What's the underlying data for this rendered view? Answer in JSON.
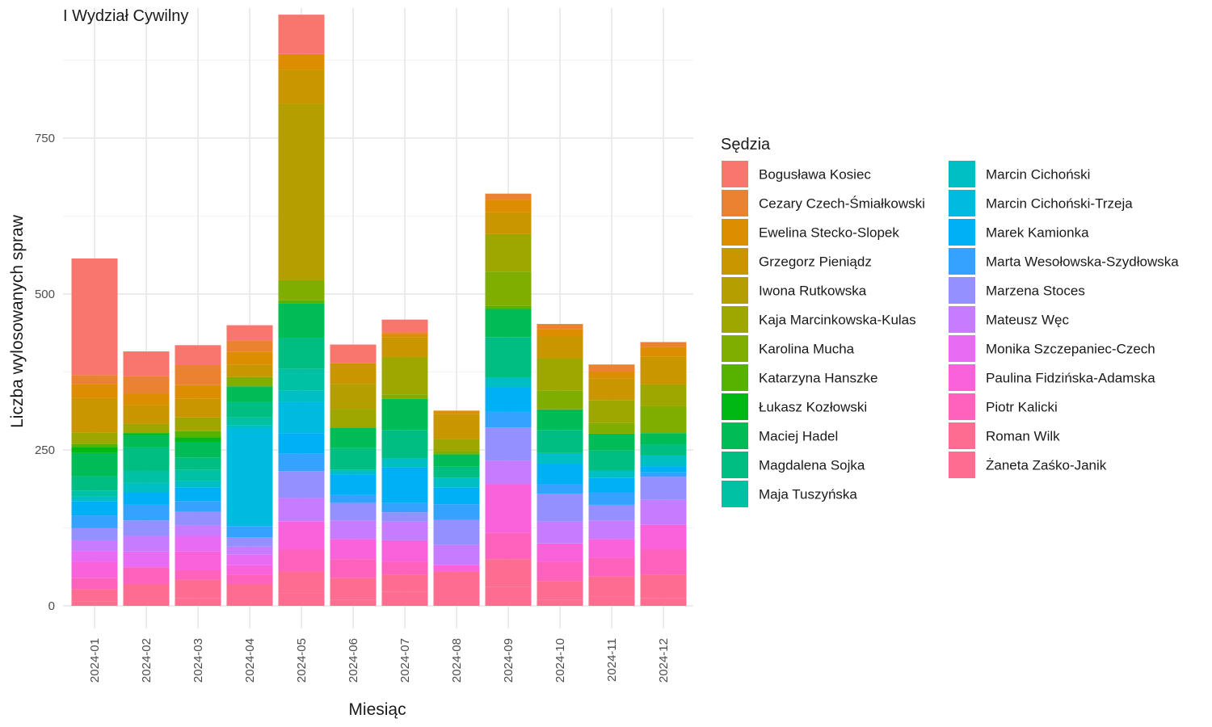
{
  "chart_data": {
    "type": "bar",
    "stacked": true,
    "title": "I Wydział Cywilny",
    "xlabel": "Miesiąc",
    "ylabel": "Liczba wylosowanych spraw",
    "ylim": [
      0,
      950
    ],
    "yticks": [
      0,
      250,
      500,
      750
    ],
    "grid": true,
    "legend_title": "Sędzia",
    "legend_position": "right",
    "categories": [
      "2024-01",
      "2024-02",
      "2024-03",
      "2024-04",
      "2024-05",
      "2024-06",
      "2024-07",
      "2024-08",
      "2024-09",
      "2024-10",
      "2024-11",
      "2024-12"
    ],
    "series": [
      {
        "name": "Bogusława Kosiec",
        "color": "#F8766D",
        "values": [
          187,
          40,
          32,
          25,
          63,
          30,
          20,
          0,
          0,
          0,
          0,
          0
        ]
      },
      {
        "name": "Cezary Czech-Śmiałkowski",
        "color": "#EA8331",
        "values": [
          15,
          28,
          32,
          18,
          0,
          0,
          3,
          0,
          10,
          8,
          12,
          8
        ]
      },
      {
        "name": "Ewelina Stecko-Slopek",
        "color": "#DC8D00",
        "values": [
          22,
          18,
          22,
          20,
          25,
          0,
          5,
          5,
          20,
          12,
          10,
          15
        ]
      },
      {
        "name": "Grzegorz Pieniądz",
        "color": "#CA9600",
        "values": [
          55,
          30,
          30,
          20,
          55,
          33,
          32,
          40,
          35,
          35,
          35,
          45
        ]
      },
      {
        "name": "Iwona Rutkowska",
        "color": "#B59F00",
        "values": [
          0,
          0,
          0,
          0,
          283,
          40,
          0,
          0,
          0,
          0,
          0,
          0
        ]
      },
      {
        "name": "Kaja Marcinkowska-Kulas",
        "color": "#9DA700",
        "values": [
          18,
          15,
          22,
          0,
          0,
          30,
          60,
          20,
          60,
          52,
          37,
          35
        ]
      },
      {
        "name": "Karolina Mucha",
        "color": "#7FAE00",
        "values": [
          0,
          0,
          0,
          15,
          32,
          0,
          7,
          5,
          55,
          30,
          17,
          43
        ]
      },
      {
        "name": "Katarzyna Hanszke",
        "color": "#55B300",
        "values": [
          5,
          0,
          10,
          0,
          5,
          0,
          0,
          0,
          5,
          0,
          0,
          0
        ]
      },
      {
        "name": "Łukasz Kozłowski",
        "color": "#00B813",
        "values": [
          10,
          3,
          7,
          0,
          0,
          0,
          0,
          0,
          0,
          0,
          0,
          0
        ]
      },
      {
        "name": "Maciej Hadel",
        "color": "#00BC56",
        "values": [
          37,
          20,
          25,
          25,
          55,
          33,
          50,
          20,
          45,
          33,
          27,
          18
        ]
      },
      {
        "name": "Magdalena Sojka",
        "color": "#00BE81",
        "values": [
          23,
          37,
          20,
          25,
          50,
          35,
          45,
          18,
          65,
          37,
          32,
          18
        ]
      },
      {
        "name": "Maja Tuszyńska",
        "color": "#00C1A3",
        "values": [
          10,
          20,
          18,
          12,
          35,
          0,
          0,
          0,
          0,
          0,
          0,
          0
        ]
      },
      {
        "name": "Marcin Cichoński",
        "color": "#00BFC4",
        "values": [
          7,
          15,
          10,
          5,
          18,
          7,
          15,
          15,
          15,
          17,
          12,
          17
        ]
      },
      {
        "name": "Marcin Cichoński-Trzeja",
        "color": "#00BAE0",
        "values": [
          0,
          0,
          0,
          157,
          50,
          0,
          0,
          0,
          0,
          0,
          0,
          0
        ]
      },
      {
        "name": "Marek Kamionka",
        "color": "#00B0F6",
        "values": [
          23,
          20,
          22,
          0,
          33,
          33,
          57,
          27,
          40,
          33,
          23,
          10
        ]
      },
      {
        "name": "Marta Wesołowska-Szydłowska",
        "color": "#35A2FF",
        "values": [
          20,
          25,
          17,
          18,
          28,
          13,
          15,
          25,
          25,
          15,
          20,
          7
        ]
      },
      {
        "name": "Marzena Stoces",
        "color": "#9590FF",
        "values": [
          20,
          25,
          22,
          15,
          43,
          28,
          15,
          40,
          53,
          45,
          25,
          37
        ]
      },
      {
        "name": "Mateusz Węc",
        "color": "#C77CFF",
        "values": [
          17,
          25,
          17,
          13,
          38,
          30,
          30,
          33,
          38,
          35,
          30,
          40
        ]
      },
      {
        "name": "Monika Szczepaniec-Czech",
        "color": "#E76BF3",
        "values": [
          18,
          25,
          25,
          17,
          0,
          0,
          0,
          0,
          0,
          0,
          0,
          0
        ]
      },
      {
        "name": "Paulina Fidzińska-Adamska",
        "color": "#FA62DB",
        "values": [
          25,
          0,
          30,
          15,
          45,
          32,
          35,
          10,
          78,
          30,
          30,
          40
        ]
      },
      {
        "name": "Piotr Kalicki",
        "color": "#FF62BC",
        "values": [
          18,
          27,
          15,
          15,
          35,
          30,
          20,
          0,
          42,
          30,
          30,
          40
        ]
      },
      {
        "name": "Roman Wilk",
        "color": "#FF6C91",
        "values": [
          20,
          35,
          30,
          35,
          35,
          35,
          27,
          55,
          45,
          30,
          32,
          38
        ]
      },
      {
        "name": "Żaneta Zaśko-Janik",
        "color": "#FF6C91",
        "values": [
          7,
          0,
          12,
          0,
          20,
          10,
          23,
          0,
          30,
          10,
          15,
          12
        ]
      }
    ]
  }
}
